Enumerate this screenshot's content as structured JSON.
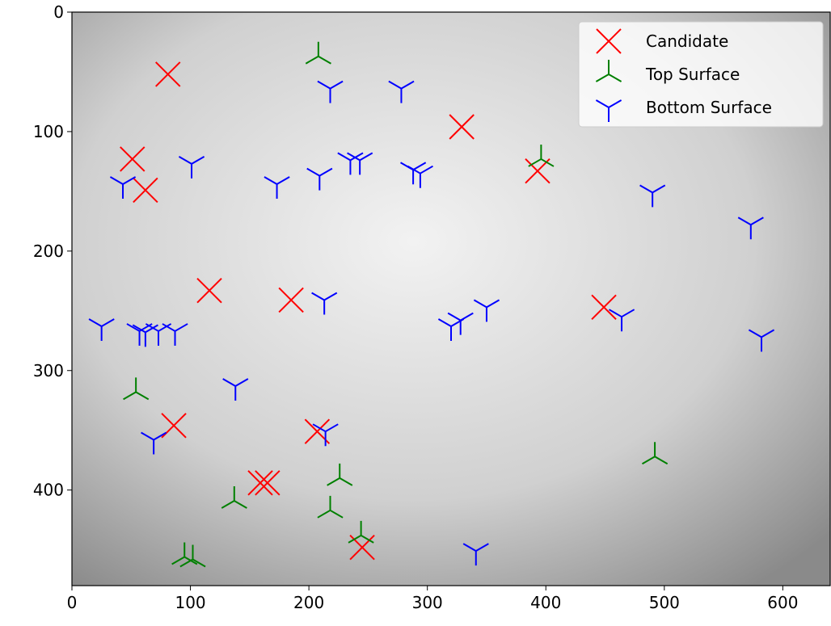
{
  "chart_data": {
    "type": "scatter",
    "xlim": [
      0,
      640
    ],
    "ylim": [
      0,
      480
    ],
    "invert_y": true,
    "xticks": [
      0,
      100,
      200,
      300,
      400,
      500,
      600
    ],
    "yticks": [
      0,
      100,
      200,
      300,
      400
    ],
    "legend": "upper right",
    "series": [
      {
        "name": "Candidate",
        "color": "#ff0000",
        "marker": "x",
        "x": [
          81,
          51,
          62,
          116,
          185,
          329,
          393,
          449,
          86,
          207,
          159,
          165,
          245
        ],
        "y": [
          52,
          123,
          149,
          233,
          241,
          96,
          133,
          247,
          346,
          351,
          394,
          394,
          448
        ]
      },
      {
        "name": "Top Surface",
        "color": "#008000",
        "marker": "tri_up",
        "x": [
          208,
          396,
          54,
          226,
          137,
          218,
          244,
          492,
          95,
          102
        ],
        "y": [
          37,
          123,
          318,
          390,
          409,
          417,
          438,
          372,
          456,
          458
        ]
      },
      {
        "name": "Bottom Surface",
        "color": "#0000ff",
        "marker": "tri_down",
        "x": [
          218,
          278,
          43,
          101,
          173,
          209,
          235,
          243,
          288,
          294,
          490,
          573,
          213,
          25,
          57,
          62,
          73,
          87,
          320,
          328,
          350,
          464,
          582,
          138,
          69,
          214,
          341
        ],
        "y": [
          64,
          64,
          144,
          127,
          144,
          137,
          124,
          124,
          132,
          135,
          151,
          178,
          241,
          263,
          267,
          268,
          267,
          267,
          263,
          258,
          247,
          255,
          272,
          313,
          358,
          351,
          451
        ]
      }
    ]
  }
}
